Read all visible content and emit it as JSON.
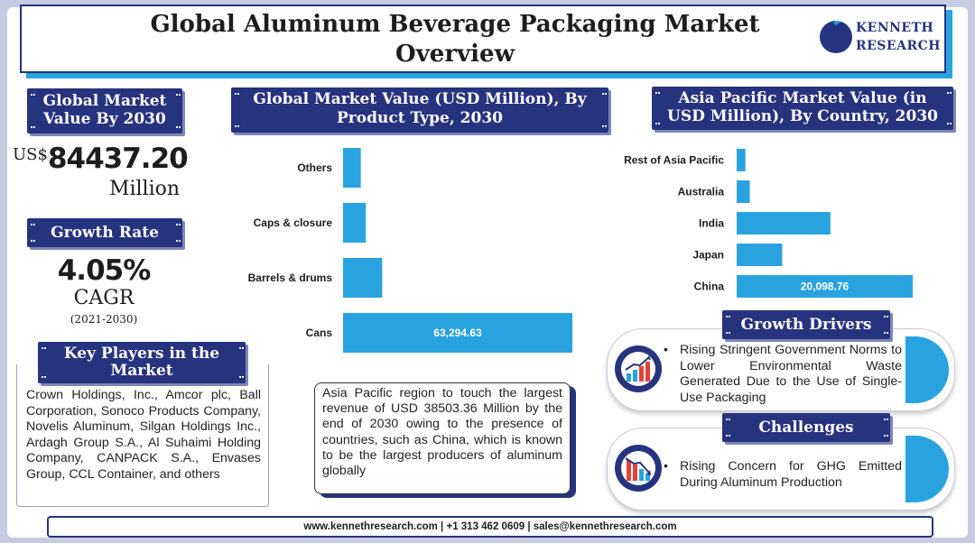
{
  "header": {
    "title": "Global Aluminum Beverage Packaging Market\nOverview",
    "logo_line1": "KENNETH",
    "logo_line2": "RESEARCH"
  },
  "market_value": {
    "label": "Global Market Value By 2030",
    "currency": "US$",
    "value": "84437.20",
    "unit": "Million"
  },
  "growth": {
    "label": "Growth Rate",
    "value": "4.05%",
    "metric": "CAGR",
    "period": "(2021-2030)"
  },
  "key_players": {
    "label": "Key Players in the Market",
    "text": "Crown Holdings, Inc., Amcor plc, Ball Corporation, Sonoco Products Company, Novelis Aluminum, Silgan Holdings Inc., Ardagh Group S.A., Al Suhaimi Holding Company, CANPACK S.A., Envases Group, CCL Container, and others"
  },
  "note": {
    "text": "Asia Pacific region to touch the largest revenue of USD 38503.36 Million by the end of 2030 owing to the presence of countries, such as China, which is known to be the largest producers of aluminum globally"
  },
  "growth_drivers": {
    "label": "Growth Drivers",
    "icon": "rising-bar-chart-icon",
    "text": "Rising Stringent Government Norms to Lower Environmental Waste Generated Due to the Use of Single-Use Packaging"
  },
  "challenges": {
    "label": "Challenges",
    "icon": "falling-bar-chart-icon",
    "text": "Rising Concern for GHG Emitted During Aluminum Production"
  },
  "footer": {
    "text": "www.kennethresearch.com | +1 313 462 0609 | sales@kennethresearch.com"
  },
  "colors": {
    "navy": "#26337e",
    "bar_blue": "#29a3e0",
    "text": "#1d1d1d"
  },
  "chart_data": [
    {
      "type": "bar",
      "orientation": "horizontal",
      "title": "Global Market Value (USD Million), By Product Type, 2030",
      "categories": [
        "Others",
        "Caps & closure",
        "Barrels & drums",
        "Cans"
      ],
      "values": [
        4900,
        6300,
        10800,
        63294.63
      ],
      "value_labels": [
        "",
        "",
        "",
        "63,294.63"
      ],
      "grid": false
    },
    {
      "type": "bar",
      "orientation": "horizontal",
      "title": "Asia Pacific Market Value (in USD Million), By Country, 2030",
      "categories": [
        "Rest of Asia Pacific",
        "Australia",
        "India",
        "Japan",
        "China"
      ],
      "values": [
        1000,
        1500,
        10700,
        5200,
        20098.76
      ],
      "value_labels": [
        "",
        "",
        "",
        "",
        "20,098.76"
      ],
      "grid": false
    }
  ]
}
